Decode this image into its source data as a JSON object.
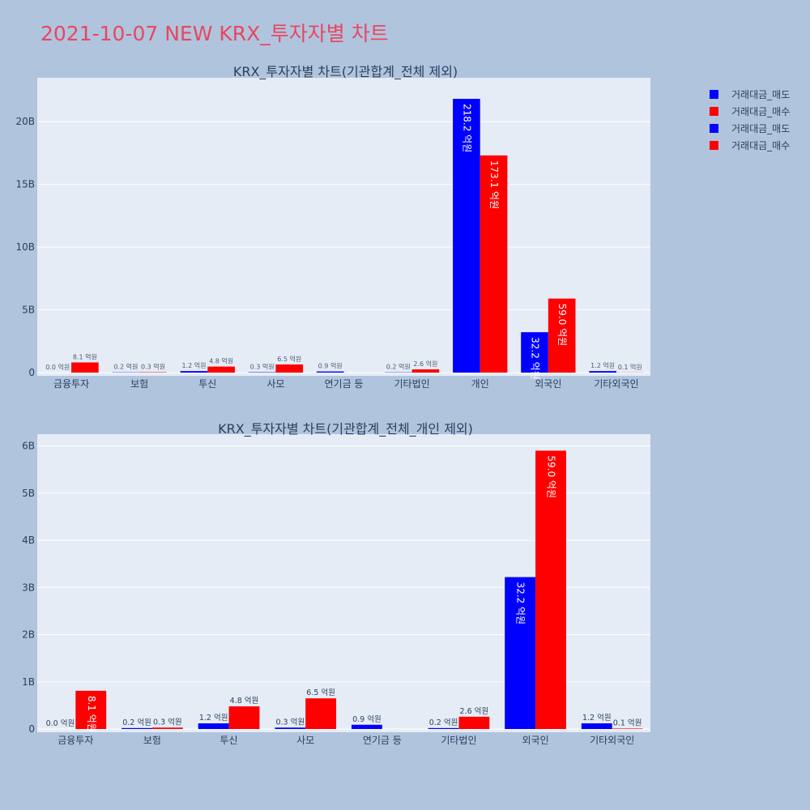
{
  "page_title": "2021-10-07 NEW KRX_투자자별 차트",
  "legend": [
    {
      "label": "거래대금_매도",
      "color": "#0000ff"
    },
    {
      "label": "거래대금_매수",
      "color": "#ff0000"
    },
    {
      "label": "거래대금_매도",
      "color": "#0000ff"
    },
    {
      "label": "거래대금_매수",
      "color": "#ff0000"
    }
  ],
  "chart_data": [
    {
      "type": "bar",
      "title": "KRX_투자자별 차트(기관합계_전체 제외)",
      "categories": [
        "금융투자",
        "보험",
        "투신",
        "사모",
        "연기금 등",
        "기타법인",
        "개인",
        "외국인",
        "기타외국인"
      ],
      "ylim": [
        0,
        23.5
      ],
      "ytick_values": [
        0,
        5,
        10,
        15,
        20
      ],
      "ytick_labels": [
        "0",
        "5B",
        "10B",
        "15B",
        "20B"
      ],
      "grid": true,
      "series": [
        {
          "name": "거래대금_매도",
          "color": "#0000ff",
          "values": [
            0.0,
            0.02,
            0.12,
            0.03,
            0.09,
            0.02,
            21.82,
            3.22,
            0.12
          ],
          "labels": [
            "0.0 억원",
            "0.2 억원",
            "1.2 억원",
            "0.3 억원",
            "0.9 억원",
            "0.2 억원",
            "218.2 억원",
            "32.2 억원",
            "1.2 억원"
          ]
        },
        {
          "name": "거래대금_매수",
          "color": "#ff0000",
          "values": [
            0.81,
            0.03,
            0.48,
            0.65,
            0.0,
            0.26,
            17.31,
            5.9,
            0.01
          ],
          "labels": [
            "8.1 억원",
            "0.3 억원",
            "4.8 억원",
            "6.5 억원",
            "",
            "2.6 억원",
            "173.1 억원",
            "59.0 억원",
            "0.1 억원"
          ]
        }
      ]
    },
    {
      "type": "bar",
      "title": "KRX_투자자별 차트(기관합계_전체_개인 제외)",
      "categories": [
        "금융투자",
        "보험",
        "투신",
        "사모",
        "연기금 등",
        "기타법인",
        "외국인",
        "기타외국인"
      ],
      "ylim": [
        0,
        6.25
      ],
      "ytick_values": [
        0,
        1,
        2,
        3,
        4,
        5,
        6
      ],
      "ytick_labels": [
        "0",
        "1B",
        "2B",
        "3B",
        "4B",
        "5B",
        "6B"
      ],
      "grid": true,
      "series": [
        {
          "name": "거래대금_매도",
          "color": "#0000ff",
          "values": [
            0.0,
            0.02,
            0.12,
            0.03,
            0.09,
            0.02,
            3.22,
            0.12
          ],
          "labels": [
            "0.0 억원",
            "0.2 억원",
            "1.2 억원",
            "0.3 억원",
            "0.9 억원",
            "0.2 억원",
            "32.2 억원",
            "1.2 억원"
          ]
        },
        {
          "name": "거래대금_매수",
          "color": "#ff0000",
          "values": [
            0.81,
            0.03,
            0.48,
            0.65,
            0.0,
            0.26,
            5.9,
            0.01
          ],
          "labels": [
            "8.1 억원",
            "0.3 억원",
            "4.8 억원",
            "6.5 억원",
            "",
            "2.6 억원",
            "59.0 억원",
            "0.1 억원"
          ]
        }
      ]
    }
  ]
}
